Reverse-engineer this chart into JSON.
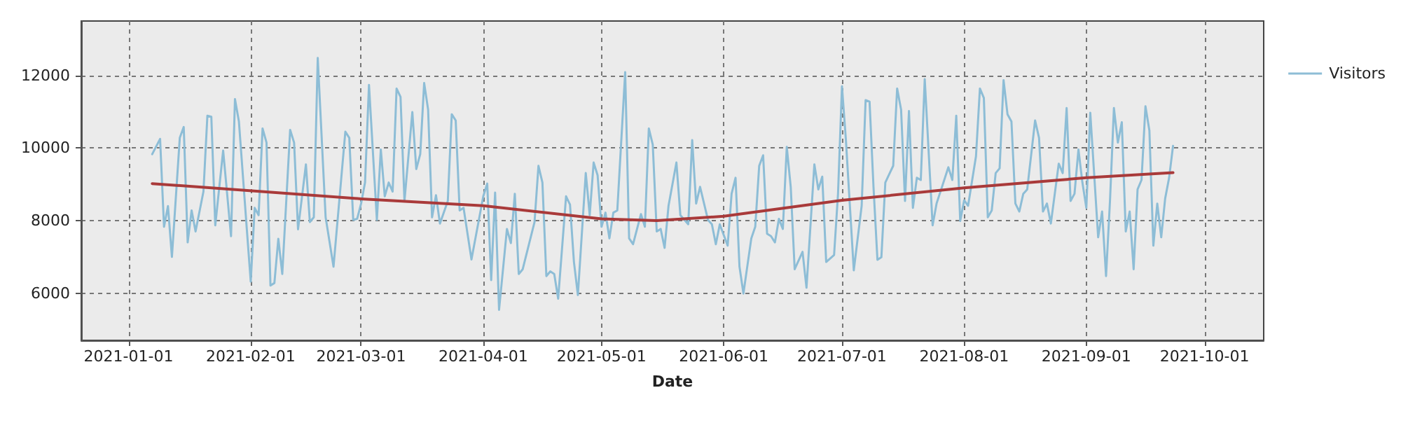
{
  "chart_data": {
    "type": "line",
    "xlabel": "Date",
    "xlim": [
      "2020-12-20",
      "2021-10-16"
    ],
    "xticks": [
      "2021-01-01",
      "2021-02-01",
      "2021-03-01",
      "2021-04-01",
      "2021-05-01",
      "2021-06-01",
      "2021-07-01",
      "2021-08-01",
      "2021-09-01",
      "2021-10-01"
    ],
    "ylim": [
      4700,
      13500
    ],
    "yticks": [
      6000,
      8000,
      10000,
      12000
    ],
    "grid": true,
    "legend": "top right",
    "marker": "none",
    "line_style": "solid",
    "series": [
      {
        "name": "Visitors",
        "color": "#8dbdd6",
        "x": [
          "2021-01-07",
          "2021-01-09",
          "2021-01-10",
          "2021-01-11",
          "2021-01-12",
          "2021-01-14",
          "2021-01-15",
          "2021-01-16",
          "2021-01-17",
          "2021-01-18",
          "2021-01-20",
          "2021-01-21",
          "2021-01-22",
          "2021-01-23",
          "2021-01-25",
          "2021-01-27",
          "2021-01-28",
          "2021-01-29",
          "2021-01-31",
          "2021-02-01",
          "2021-02-02",
          "2021-02-03",
          "2021-02-04",
          "2021-02-05",
          "2021-02-06",
          "2021-02-07",
          "2021-02-08",
          "2021-02-09",
          "2021-02-11",
          "2021-02-12",
          "2021-02-13",
          "2021-02-15",
          "2021-02-16",
          "2021-02-17",
          "2021-02-18",
          "2021-02-20",
          "2021-02-22",
          "2021-02-25",
          "2021-02-26",
          "2021-02-27",
          "2021-02-28",
          "2021-03-01",
          "2021-03-02",
          "2021-03-03",
          "2021-03-05",
          "2021-03-06",
          "2021-03-07",
          "2021-03-08",
          "2021-03-09",
          "2021-03-10",
          "2021-03-11",
          "2021-03-12",
          "2021-03-14",
          "2021-03-15",
          "2021-03-16",
          "2021-03-17",
          "2021-03-18",
          "2021-03-19",
          "2021-03-20",
          "2021-03-21",
          "2021-03-23",
          "2021-03-24",
          "2021-03-25",
          "2021-03-26",
          "2021-03-27",
          "2021-03-29",
          "2021-04-01",
          "2021-04-02",
          "2021-04-03",
          "2021-04-04",
          "2021-04-05",
          "2021-04-07",
          "2021-04-08",
          "2021-04-09",
          "2021-04-10",
          "2021-04-11",
          "2021-04-14",
          "2021-04-15",
          "2021-04-16",
          "2021-04-17",
          "2021-04-18",
          "2021-04-19",
          "2021-04-20",
          "2021-04-22",
          "2021-04-23",
          "2021-04-24",
          "2021-04-25",
          "2021-04-27",
          "2021-04-28",
          "2021-04-29",
          "2021-04-30",
          "2021-05-01",
          "2021-05-02",
          "2021-05-03",
          "2021-05-04",
          "2021-05-05",
          "2021-05-07",
          "2021-05-08",
          "2021-05-09",
          "2021-05-11",
          "2021-05-12",
          "2021-05-13",
          "2021-05-14",
          "2021-05-15",
          "2021-05-16",
          "2021-05-17",
          "2021-05-18",
          "2021-05-20",
          "2021-05-21",
          "2021-05-23",
          "2021-05-24",
          "2021-05-25",
          "2021-05-26",
          "2021-05-28",
          "2021-05-29",
          "2021-05-30",
          "2021-05-31",
          "2021-06-02",
          "2021-06-03",
          "2021-06-04",
          "2021-06-05",
          "2021-06-06",
          "2021-06-08",
          "2021-06-09",
          "2021-06-10",
          "2021-06-11",
          "2021-06-12",
          "2021-06-13",
          "2021-06-14",
          "2021-06-15",
          "2021-06-16",
          "2021-06-17",
          "2021-06-18",
          "2021-06-19",
          "2021-06-21",
          "2021-06-22",
          "2021-06-24",
          "2021-06-25",
          "2021-06-26",
          "2021-06-27",
          "2021-06-29",
          "2021-06-30",
          "2021-07-01",
          "2021-07-02",
          "2021-07-04",
          "2021-07-06",
          "2021-07-07",
          "2021-07-08",
          "2021-07-09",
          "2021-07-10",
          "2021-07-11",
          "2021-07-12",
          "2021-07-14",
          "2021-07-15",
          "2021-07-16",
          "2021-07-17",
          "2021-07-18",
          "2021-07-19",
          "2021-07-20",
          "2021-07-21",
          "2021-07-22",
          "2021-07-24",
          "2021-07-25",
          "2021-07-28",
          "2021-07-29",
          "2021-07-30",
          "2021-07-31",
          "2021-08-01",
          "2021-08-02",
          "2021-08-04",
          "2021-08-05",
          "2021-08-06",
          "2021-08-07",
          "2021-08-08",
          "2021-08-09",
          "2021-08-10",
          "2021-08-11",
          "2021-08-12",
          "2021-08-13",
          "2021-08-14",
          "2021-08-15",
          "2021-08-16",
          "2021-08-17",
          "2021-08-19",
          "2021-08-20",
          "2021-08-21",
          "2021-08-22",
          "2021-08-23",
          "2021-08-25",
          "2021-08-26",
          "2021-08-27",
          "2021-08-28",
          "2021-08-29",
          "2021-08-30",
          "2021-08-31",
          "2021-09-01",
          "2021-09-02",
          "2021-09-04",
          "2021-09-05",
          "2021-09-06",
          "2021-09-07",
          "2021-09-08",
          "2021-09-09",
          "2021-09-10",
          "2021-09-11",
          "2021-09-12",
          "2021-09-13",
          "2021-09-14",
          "2021-09-15",
          "2021-09-16",
          "2021-09-17",
          "2021-09-18",
          "2021-09-19",
          "2021-09-20",
          "2021-09-21",
          "2021-09-22",
          "2021-09-23"
        ],
        "values": [
          9830,
          10250,
          7830,
          8400,
          7000,
          10280,
          10580,
          7400,
          8280,
          7700,
          8800,
          10890,
          10860,
          7870,
          9930,
          7570,
          11350,
          10730,
          7770,
          6320,
          8350,
          8150,
          10540,
          10150,
          6210,
          6280,
          7500,
          6530,
          10500,
          10150,
          7760,
          9550,
          7960,
          8090,
          12480,
          8090,
          6730,
          10450,
          10280,
          8020,
          8050,
          8470,
          9050,
          11740,
          8020,
          9960,
          8670,
          9050,
          8800,
          11640,
          11410,
          8540,
          10990,
          9420,
          9830,
          11790,
          11060,
          8090,
          8700,
          7920,
          8540,
          10930,
          10760,
          8280,
          8350,
          6930,
          8670,
          9020,
          6360,
          8770,
          5540,
          7770,
          7380,
          8740,
          6530,
          6660,
          7960,
          9510,
          9050,
          6470,
          6600,
          6530,
          5850,
          8670,
          8440,
          6860,
          5950,
          9310,
          8150,
          9600,
          9250,
          7830,
          8220,
          7510,
          8220,
          8280,
          12090,
          7510,
          7350,
          8180,
          7830,
          10540,
          10090,
          7700,
          7770,
          7250,
          8410,
          9600,
          8150,
          7900,
          10220,
          8470,
          8930,
          8020,
          7900,
          7350,
          7900,
          7310,
          8740,
          9180,
          6730,
          5990,
          7510,
          7830,
          9510,
          9800,
          7640,
          7570,
          7400,
          8050,
          7770,
          10030,
          8930,
          6660,
          7140,
          6150,
          9550,
          8860,
          9210,
          6860,
          7050,
          8740,
          11700,
          10220,
          6630,
          8410,
          11320,
          11280,
          8930,
          6920,
          6990,
          9050,
          9510,
          11640,
          11060,
          8540,
          11020,
          8350,
          9180,
          9120,
          11900,
          7870,
          8470,
          9470,
          9120,
          10890,
          7990,
          8560,
          8410,
          9770,
          11640,
          11380,
          8090,
          8280,
          9310,
          9440,
          11870,
          10930,
          10730,
          8470,
          8250,
          8740,
          8860,
          10760,
          10280,
          8250,
          8470,
          7920,
          9570,
          9310,
          11100,
          8540,
          8740,
          9960,
          9050,
          8350,
          10970,
          7540,
          8250,
          6470,
          8540,
          11100,
          10150,
          10710,
          7700,
          8250,
          6660,
          8860,
          9120,
          11150,
          10480,
          7310,
          8470,
          7540,
          8610,
          9180,
          10060
        ]
      },
      {
        "type": "line",
        "color": "#a93a3a",
        "x": [
          "2021-01-07",
          "2021-03-01",
          "2021-04-01",
          "2021-05-01",
          "2021-05-15",
          "2021-06-01",
          "2021-07-01",
          "2021-08-01",
          "2021-09-01",
          "2021-09-23"
        ],
        "values": [
          9020,
          8600,
          8410,
          8050,
          8000,
          8120,
          8560,
          8900,
          9180,
          9320
        ]
      }
    ]
  }
}
